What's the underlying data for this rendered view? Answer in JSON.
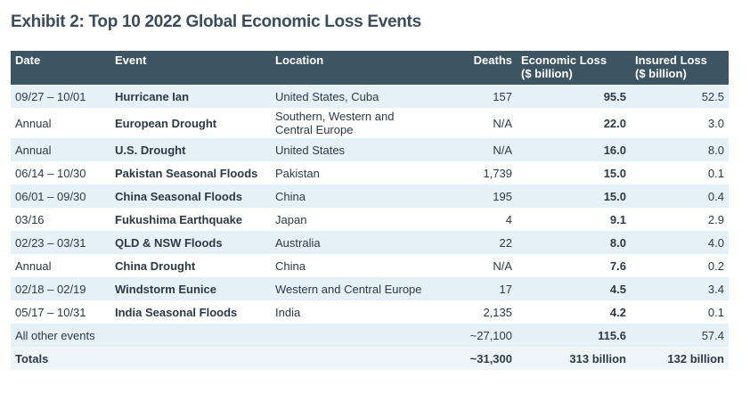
{
  "title": "Exhibit 2: Top 10 2022 Global Economic Loss Events",
  "table": {
    "headers": [
      [
        "Date"
      ],
      [
        "Event"
      ],
      [
        "Location"
      ],
      [
        "Deaths"
      ],
      [
        "Economic Loss",
        "($ billion)"
      ],
      [
        "Insured Loss",
        "($ billion)"
      ]
    ],
    "rows": [
      [
        "09/27 – 10/01",
        "Hurricane Ian",
        "United States, Cuba",
        "157",
        "95.5",
        "52.5"
      ],
      [
        "Annual",
        "European Drought",
        "Southern, Western and Central Europe",
        "N/A",
        "22.0",
        "3.0"
      ],
      [
        "Annual",
        "U.S. Drought",
        "United States",
        "N/A",
        "16.0",
        "8.0"
      ],
      [
        "06/14 – 10/30",
        "Pakistan Seasonal Floods",
        "Pakistan",
        "1,739",
        "15.0",
        "0.1"
      ],
      [
        "06/01 – 09/30",
        "China Seasonal Floods",
        "China",
        "195",
        "15.0",
        "0.4"
      ],
      [
        "03/16",
        "Fukushima Earthquake",
        "Japan",
        "4",
        "9.1",
        "2.9"
      ],
      [
        "02/23 – 03/31",
        "QLD & NSW Floods",
        "Australia",
        "22",
        "8.0",
        "4.0"
      ],
      [
        "Annual",
        "China Drought",
        "China",
        "N/A",
        "7.6",
        "0.2"
      ],
      [
        "02/18 – 02/19",
        "Windstorm Eunice",
        "Western and Central Europe",
        "17",
        "4.5",
        "3.4"
      ],
      [
        "05/17 – 10/31",
        "India Seasonal Floods",
        "India",
        "2,135",
        "4.2",
        "0.1"
      ]
    ],
    "other": [
      "All other events",
      "~27,100",
      "115.6",
      "57.4"
    ],
    "totals": [
      "Totals",
      "~31,300",
      "313 billion",
      "132 billion"
    ]
  }
}
